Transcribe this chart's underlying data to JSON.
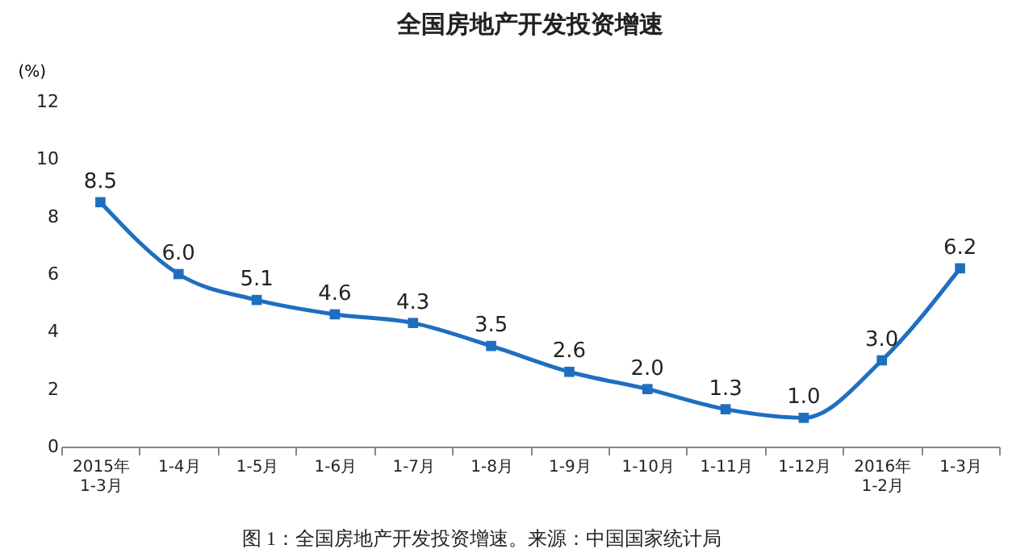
{
  "chart_data": {
    "type": "line",
    "title": "全国房地产开发投资增速",
    "ylabel": "(%)",
    "categories": [
      "2015年\n1-3月",
      "1-4月",
      "1-5月",
      "1-6月",
      "1-7月",
      "1-8月",
      "1-9月",
      "1-10月",
      "1-11月",
      "1-12月",
      "2016年\n1-2月",
      "1-3月"
    ],
    "series": [
      {
        "color": "#1f6fc0",
        "values": [
          8.5,
          6.0,
          5.1,
          4.6,
          4.3,
          3.5,
          2.6,
          2.0,
          1.3,
          1.0,
          3.0,
          6.2
        ],
        "value_labels": [
          "8.5",
          "6.0",
          "5.1",
          "4.6",
          "4.3",
          "3.5",
          "2.6",
          "2.0",
          "1.3",
          "1.0",
          "3.0",
          "6.2"
        ]
      }
    ],
    "ylim": [
      0,
      12
    ],
    "yticks": [
      0,
      2,
      4,
      6,
      8,
      10,
      12
    ],
    "marker": "square",
    "line_style": "solid",
    "grid": false,
    "legend": false,
    "annotations": [
      "图 1：全国房地产开发投资增速。来源：中国国家统计局"
    ]
  }
}
